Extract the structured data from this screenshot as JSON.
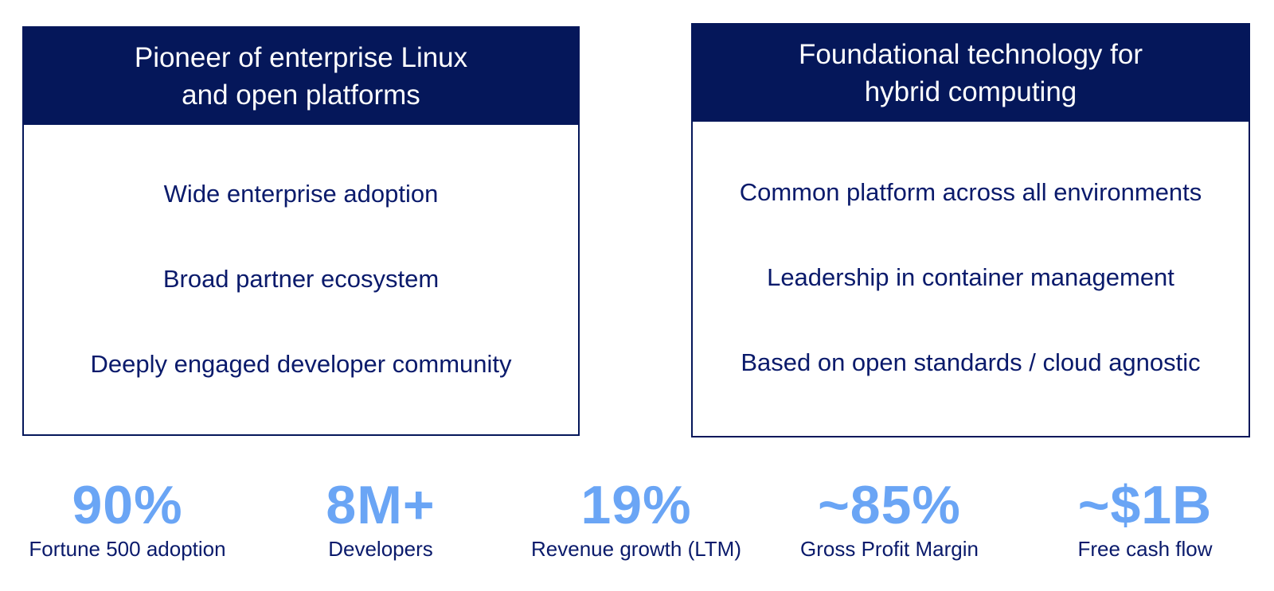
{
  "left_card": {
    "header_line1": "Pioneer of enterprise Linux",
    "header_line2": "and open platforms",
    "items": [
      "Wide enterprise adoption",
      "Broad partner ecosystem",
      "Deeply engaged developer community"
    ]
  },
  "right_card": {
    "header_line1": "Foundational technology for",
    "header_line2": "hybrid computing",
    "items": [
      "Common platform across all environments",
      "Leadership in container management",
      "Based on open standards / cloud agnostic"
    ]
  },
  "stats": [
    {
      "value": "90%",
      "label": "Fortune 500 adoption"
    },
    {
      "value": "8M+",
      "label": "Developers"
    },
    {
      "value": "19%",
      "label": "Revenue growth (LTM)"
    },
    {
      "value": "~85%",
      "label": "Gross Profit Margin"
    },
    {
      "value": "~$1B",
      "label": "Free cash flow"
    }
  ],
  "colors": {
    "navy": "#05175a",
    "text_navy": "#0a1a6b",
    "stat_blue": "#6aa5f5"
  }
}
